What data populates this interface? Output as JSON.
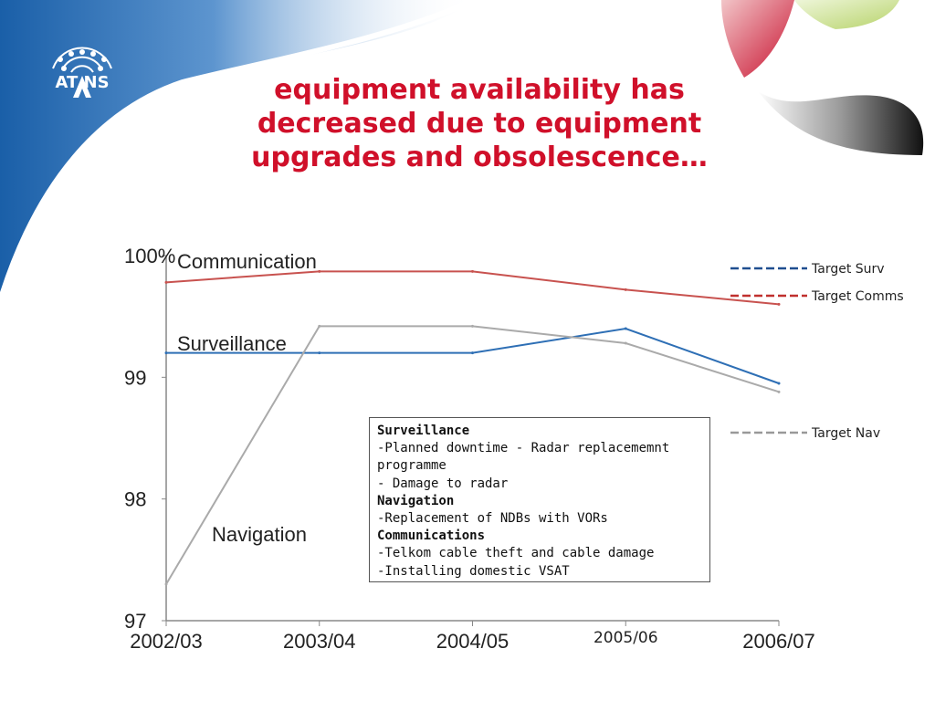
{
  "slide": {
    "title_lines": [
      "equipment availability has",
      "decreased due to equipment",
      "upgrades and obsolescence…"
    ],
    "logo_text": "AT NS",
    "colors": {
      "title": "#d0102a",
      "banner": "#1a5fa8",
      "accent_red": "#c8102e"
    }
  },
  "chart_data": {
    "type": "line",
    "categories": [
      "2002/03",
      "2003/04",
      "2004/05",
      "2005/06",
      "2006/07"
    ],
    "ylim": [
      97,
      100
    ],
    "yticks": [
      {
        "value": 100,
        "label": "100%"
      },
      {
        "value": 99,
        "label": "99"
      },
      {
        "value": 98,
        "label": "98"
      },
      {
        "value": 97,
        "label": "97"
      }
    ],
    "series": [
      {
        "name": "Communication",
        "color": "#c8524f",
        "values": [
          99.78,
          99.87,
          99.87,
          99.72,
          99.6
        ]
      },
      {
        "name": "Surveillance",
        "color": "#2e6fb5",
        "values": [
          99.2,
          99.2,
          99.2,
          99.4,
          98.95
        ]
      },
      {
        "name": "Navigation",
        "color": "#aaaaaa",
        "values": [
          97.3,
          99.42,
          99.42,
          99.28,
          98.88
        ]
      }
    ],
    "legend": [
      {
        "label": "Target Surv",
        "color": "#1f4e8f"
      },
      {
        "label": "Target Comms",
        "color": "#c0302e"
      },
      {
        "label": "Target Nav",
        "color": "#999999"
      }
    ],
    "notes": [
      {
        "text": "Surveillance",
        "heading": true
      },
      {
        "text": "-Planned downtime - Radar replacememnt",
        "heading": false
      },
      {
        "text": "programme",
        "heading": false
      },
      {
        "text": "- Damage to radar",
        "heading": false
      },
      {
        "text": "Navigation",
        "heading": true
      },
      {
        "text": "-Replacement of NDBs with VORs",
        "heading": false
      },
      {
        "text": "Communications",
        "heading": true
      },
      {
        "text": "-Telkom cable theft and cable damage",
        "heading": false
      },
      {
        "text": "-Installing domestic VSAT",
        "heading": false
      }
    ]
  }
}
